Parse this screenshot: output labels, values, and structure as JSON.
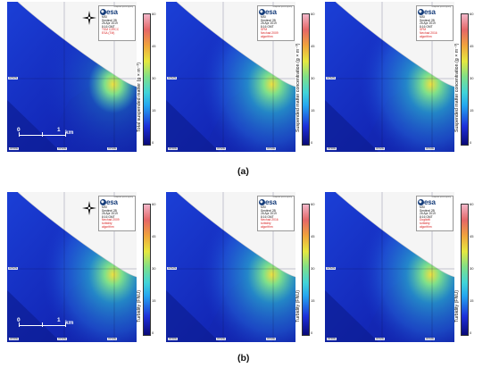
{
  "row_a": {
    "label_open": "(",
    "label_letter": "a",
    "label_close": ")",
    "panels": [
      {
        "legend": {
          "l1": "MSI",
          "l2": "Sentinel 2B",
          "l3": "26 Apr 2019",
          "l4": "8:16 GMT",
          "l5": "TSM C2RCC",
          "l6": "ESA (TM)"
        },
        "colorbar_label": "Total suspended matter (g × m⁻³)",
        "ticks": [
          "60",
          "45",
          "30",
          "15",
          "0"
        ],
        "scale": {
          "zero": "0",
          "one": "1",
          "unit": "km"
        },
        "has_scale": true,
        "has_compass": true
      },
      {
        "legend": {
          "l1": "MSI",
          "l2": "Sentinel 2B",
          "l3": "26 Apr 2019",
          "l4": "8:16 GMT",
          "l5": "SPM",
          "l6": "Nechad 2009",
          "l7": "algorithm"
        },
        "colorbar_label": "Suspended matter concentration (g × m⁻³)",
        "ticks": [
          "60",
          "45",
          "30",
          "15",
          "0"
        ],
        "has_scale": false,
        "has_compass": false
      },
      {
        "legend": {
          "l1": "MSI",
          "l2": "Sentinel 2B",
          "l3": "26 Apr 2019",
          "l4": "8:16 GMT",
          "l5": "SPM",
          "l6": "Nechad 2016",
          "l7": "algorithm"
        },
        "colorbar_label": "Suspended matter concentration (g × m⁻³)",
        "ticks": [
          "60",
          "45",
          "30",
          "15",
          "0"
        ],
        "has_scale": false,
        "has_compass": false
      }
    ]
  },
  "row_b": {
    "label_open": "(",
    "label_letter": "b",
    "label_close": ")",
    "panels": [
      {
        "legend": {
          "l1": "MSI",
          "l2": "Sentinel 2B",
          "l3": "26 Apr 2019",
          "l4": "8:16 GMT",
          "l5": "Nechad 2009",
          "l6": "turbidity",
          "l7": "algorithm"
        },
        "colorbar_label": "Turbidity (FNU)",
        "ticks": [
          "60",
          "45",
          "30",
          "15",
          "0"
        ],
        "scale": {
          "zero": "0",
          "one": "1",
          "unit": "km"
        },
        "has_scale": true,
        "has_compass": true
      },
      {
        "legend": {
          "l1": "MSI",
          "l2": "Sentinel 2B",
          "l3": "26 Apr 2019",
          "l4": "8:16 GMT",
          "l5": "Nechad 2016",
          "l6": "turbidity",
          "l7": "algorithm"
        },
        "colorbar_label": "Turbidity (FNU)",
        "ticks": [
          "60",
          "45",
          "30",
          "15",
          "0"
        ],
        "has_scale": false,
        "has_compass": false
      },
      {
        "legend": {
          "l1": "MSI",
          "l2": "Sentinel 2B",
          "l3": "26 Apr 2019",
          "l4": "8:16 GMT",
          "l5": "Dogliotti",
          "l6": "turbidity",
          "l7": "algorithm"
        },
        "colorbar_label": "Turbidity (FNU)",
        "ticks": [
          "60",
          "45",
          "30",
          "15",
          "0"
        ],
        "has_scale": false,
        "has_compass": false
      }
    ]
  },
  "brand": {
    "logo_text": "esa",
    "tagline": "european space agency"
  },
  "coords": {
    "left_lat": "44°42'N",
    "bottom_1": "33°30'E",
    "bottom_2": "33°32'E",
    "bottom_3": "33°34'E"
  },
  "colors": {
    "deep_water": "#0b1fa0",
    "mid_water": "#1a3ed8",
    "plume": "#2ad0c8",
    "land": "#f4f4f4",
    "accent_red": "#d81c1c"
  }
}
